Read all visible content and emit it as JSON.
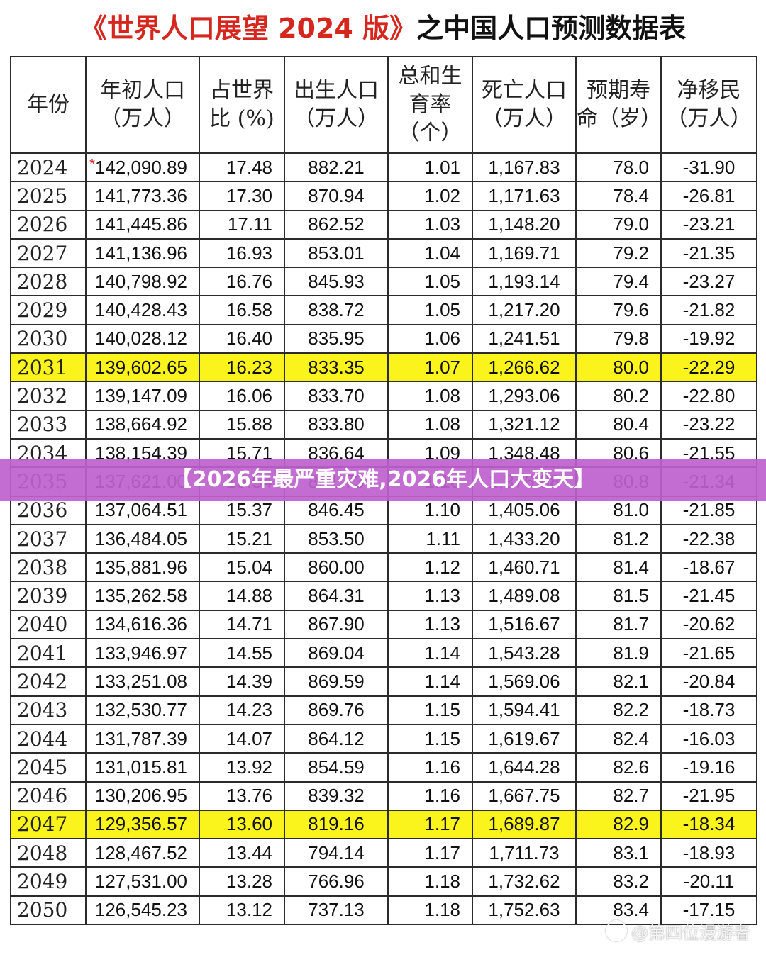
{
  "title": {
    "part1": "《世界人口展望 2024 版》",
    "part2": "之中国人口预测数据表"
  },
  "headers": [
    "年份",
    "年初人口（万人）",
    "占世界比 (%)",
    "出生人口（万人）",
    "总和生育率（个）",
    "死亡人口（万人）",
    "预期寿命（岁）",
    "净移民（万人）"
  ],
  "first_row_marker": "*",
  "rows": [
    [
      "2024",
      "142,090.89",
      "17.48",
      "882.21",
      "1.01",
      "1,167.83",
      "78.0",
      "-31.90"
    ],
    [
      "2025",
      "141,773.36",
      "17.30",
      "870.94",
      "1.02",
      "1,171.63",
      "78.4",
      "-26.81"
    ],
    [
      "2026",
      "141,445.86",
      "17.11",
      "862.52",
      "1.03",
      "1,148.20",
      "79.0",
      "-23.21"
    ],
    [
      "2027",
      "141,136.96",
      "16.93",
      "853.01",
      "1.04",
      "1,169.71",
      "79.2",
      "-21.35"
    ],
    [
      "2028",
      "140,798.92",
      "16.76",
      "845.93",
      "1.05",
      "1,193.14",
      "79.4",
      "-23.27"
    ],
    [
      "2029",
      "140,428.43",
      "16.58",
      "838.72",
      "1.05",
      "1,217.20",
      "79.6",
      "-21.82"
    ],
    [
      "2030",
      "140,028.12",
      "16.40",
      "835.95",
      "1.06",
      "1,241.51",
      "79.8",
      "-19.92"
    ],
    [
      "2031",
      "139,602.65",
      "16.23",
      "833.35",
      "1.07",
      "1,266.62",
      "80.0",
      "-22.29"
    ],
    [
      "2032",
      "139,147.09",
      "16.06",
      "833.70",
      "1.08",
      "1,293.06",
      "80.2",
      "-22.80"
    ],
    [
      "2033",
      "138,664.92",
      "15.88",
      "833.80",
      "1.08",
      "1,321.12",
      "80.4",
      "-23.22"
    ],
    [
      "2034",
      "138,154.39",
      "15.71",
      "836.64",
      "1.09",
      "1,348.48",
      "80.6",
      "-21.55"
    ],
    [
      "2035",
      "137,621.00",
      "15.54",
      "841.73",
      "1.10",
      "1,376.88",
      "80.8",
      "-21.34"
    ],
    [
      "2036",
      "137,064.51",
      "15.37",
      "846.45",
      "1.10",
      "1,405.06",
      "81.0",
      "-21.85"
    ],
    [
      "2037",
      "136,484.05",
      "15.21",
      "853.50",
      "1.11",
      "1,433.20",
      "81.2",
      "-22.38"
    ],
    [
      "2038",
      "135,881.96",
      "15.04",
      "860.00",
      "1.12",
      "1,460.71",
      "81.4",
      "-18.67"
    ],
    [
      "2039",
      "135,262.58",
      "14.88",
      "864.31",
      "1.13",
      "1,489.08",
      "81.5",
      "-21.45"
    ],
    [
      "2040",
      "134,616.36",
      "14.71",
      "867.90",
      "1.13",
      "1,516.67",
      "81.7",
      "-20.62"
    ],
    [
      "2041",
      "133,946.97",
      "14.55",
      "869.04",
      "1.14",
      "1,543.28",
      "81.9",
      "-21.65"
    ],
    [
      "2042",
      "133,251.08",
      "14.39",
      "869.59",
      "1.14",
      "1,569.06",
      "82.1",
      "-20.84"
    ],
    [
      "2043",
      "132,530.77",
      "14.23",
      "869.76",
      "1.15",
      "1,594.41",
      "82.2",
      "-18.73"
    ],
    [
      "2044",
      "131,787.39",
      "14.07",
      "864.12",
      "1.15",
      "1,619.67",
      "82.4",
      "-16.03"
    ],
    [
      "2045",
      "131,015.81",
      "13.92",
      "854.59",
      "1.16",
      "1,644.28",
      "82.6",
      "-19.16"
    ],
    [
      "2046",
      "130,206.95",
      "13.76",
      "839.32",
      "1.16",
      "1,667.75",
      "82.7",
      "-21.95"
    ],
    [
      "2047",
      "129,356.57",
      "13.60",
      "819.16",
      "1.17",
      "1,689.87",
      "82.9",
      "-18.34"
    ],
    [
      "2048",
      "128,467.52",
      "13.44",
      "794.14",
      "1.17",
      "1,711.73",
      "83.1",
      "-18.93"
    ],
    [
      "2049",
      "127,531.00",
      "13.28",
      "766.96",
      "1.18",
      "1,732.62",
      "83.2",
      "-20.11"
    ],
    [
      "2050",
      "126,545.23",
      "13.12",
      "737.13",
      "1.18",
      "1,752.63",
      "83.4",
      "-17.15"
    ]
  ],
  "highlight_years": [
    "2031",
    "2047"
  ],
  "colors": {
    "accent_red": "#d6271f",
    "highlight_yellow": "#fbf31c",
    "banner_purple": "#be60cd"
  },
  "banner": "【2026年最严重灾难,2026年人口大变天】",
  "watermark": "@第四位漫游者"
}
